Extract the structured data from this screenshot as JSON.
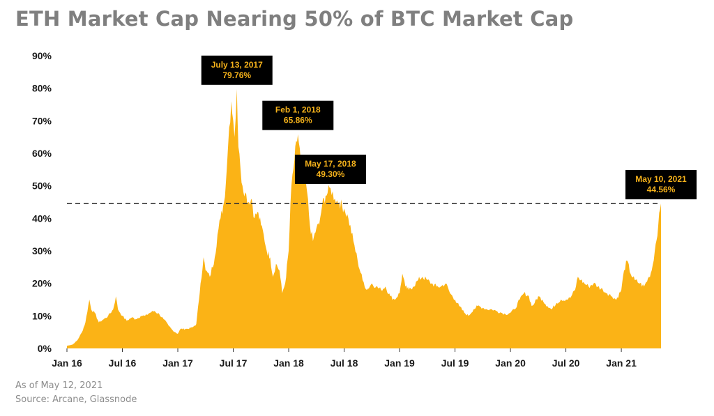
{
  "title": "ETH Market Cap Nearing 50% of BTC Market Cap",
  "footnote": {
    "line1": "As of May 12, 2021",
    "line2": "Source: Arcane, Glassnode"
  },
  "colors": {
    "area": "#fbb316",
    "title": "#7f7f7f",
    "annotation_bg": "#000000",
    "annotation_text": "#f5b21b",
    "reference_line": "#333333"
  },
  "chart_data": {
    "type": "area",
    "xlabel": "",
    "ylabel": "",
    "ylim": [
      0,
      90
    ],
    "x_start": "2016-01",
    "x_end": "2021-05",
    "y_ticks": [
      "0%",
      "10%",
      "20%",
      "30%",
      "40%",
      "50%",
      "60%",
      "70%",
      "80%",
      "90%"
    ],
    "x_ticks": [
      {
        "date": "2016-01",
        "label": "Jan 16"
      },
      {
        "date": "2016-07",
        "label": "Jul 16"
      },
      {
        "date": "2017-01",
        "label": "Jan 17"
      },
      {
        "date": "2017-07",
        "label": "Jul 17"
      },
      {
        "date": "2018-01",
        "label": "Jan 18"
      },
      {
        "date": "2018-07",
        "label": "Jul 18"
      },
      {
        "date": "2019-01",
        "label": "Jan 19"
      },
      {
        "date": "2019-07",
        "label": "Jul 19"
      },
      {
        "date": "2020-01",
        "label": "Jan 20"
      },
      {
        "date": "2020-07",
        "label": "Jul 20"
      },
      {
        "date": "2021-01",
        "label": "Jan 21"
      }
    ],
    "reference_line": 44.56,
    "series": [
      {
        "points": [
          [
            "2016-01-01",
            0.8
          ],
          [
            "2016-01-20",
            1.2
          ],
          [
            "2016-02-05",
            2.5
          ],
          [
            "2016-02-20",
            5
          ],
          [
            "2016-03-01",
            8
          ],
          [
            "2016-03-14",
            15
          ],
          [
            "2016-03-20",
            12
          ],
          [
            "2016-04-01",
            11
          ],
          [
            "2016-04-15",
            8
          ],
          [
            "2016-05-01",
            9
          ],
          [
            "2016-05-15",
            10
          ],
          [
            "2016-06-01",
            12
          ],
          [
            "2016-06-10",
            16
          ],
          [
            "2016-06-17",
            12
          ],
          [
            "2016-07-01",
            10
          ],
          [
            "2016-07-15",
            8.5
          ],
          [
            "2016-08-01",
            9.5
          ],
          [
            "2016-08-15",
            9
          ],
          [
            "2016-09-01",
            10
          ],
          [
            "2016-09-15",
            10
          ],
          [
            "2016-10-01",
            11
          ],
          [
            "2016-10-15",
            11.5
          ],
          [
            "2016-11-01",
            10.5
          ],
          [
            "2016-11-15",
            9
          ],
          [
            "2016-12-01",
            7
          ],
          [
            "2016-12-15",
            5.5
          ],
          [
            "2017-01-01",
            4.5
          ],
          [
            "2017-01-10",
            6
          ],
          [
            "2017-02-01",
            6
          ],
          [
            "2017-02-20",
            6.5
          ],
          [
            "2017-03-01",
            7.5
          ],
          [
            "2017-03-10",
            15
          ],
          [
            "2017-03-15",
            20
          ],
          [
            "2017-03-25",
            28
          ],
          [
            "2017-04-01",
            24
          ],
          [
            "2017-04-15",
            22
          ],
          [
            "2017-05-01",
            28
          ],
          [
            "2017-05-10",
            35
          ],
          [
            "2017-05-20",
            40
          ],
          [
            "2017-06-01",
            45
          ],
          [
            "2017-06-10",
            55
          ],
          [
            "2017-06-18",
            68
          ],
          [
            "2017-06-25",
            76
          ],
          [
            "2017-07-01",
            70
          ],
          [
            "2017-07-05",
            65
          ],
          [
            "2017-07-13",
            79.76
          ],
          [
            "2017-07-18",
            62
          ],
          [
            "2017-07-25",
            55
          ],
          [
            "2017-08-01",
            50
          ],
          [
            "2017-08-10",
            48
          ],
          [
            "2017-08-20",
            45
          ],
          [
            "2017-09-01",
            46
          ],
          [
            "2017-09-10",
            40
          ],
          [
            "2017-09-20",
            42
          ],
          [
            "2017-10-01",
            38
          ],
          [
            "2017-10-10",
            35
          ],
          [
            "2017-10-20",
            30
          ],
          [
            "2017-11-01",
            28
          ],
          [
            "2017-11-10",
            22
          ],
          [
            "2017-11-20",
            26
          ],
          [
            "2017-12-01",
            24
          ],
          [
            "2017-12-10",
            17
          ],
          [
            "2017-12-20",
            20
          ],
          [
            "2018-01-01",
            30
          ],
          [
            "2018-01-10",
            50
          ],
          [
            "2018-01-20",
            58
          ],
          [
            "2018-02-01",
            65.86
          ],
          [
            "2018-02-10",
            58
          ],
          [
            "2018-02-20",
            54
          ],
          [
            "2018-03-01",
            48
          ],
          [
            "2018-03-10",
            38
          ],
          [
            "2018-03-20",
            33
          ],
          [
            "2018-04-01",
            37
          ],
          [
            "2018-04-10",
            38
          ],
          [
            "2018-04-20",
            44
          ],
          [
            "2018-05-01",
            47
          ],
          [
            "2018-05-17",
            49.3
          ],
          [
            "2018-06-01",
            46
          ],
          [
            "2018-06-15",
            45
          ],
          [
            "2018-07-01",
            43
          ],
          [
            "2018-07-15",
            40
          ],
          [
            "2018-08-01",
            33
          ],
          [
            "2018-08-15",
            27
          ],
          [
            "2018-09-01",
            21
          ],
          [
            "2018-09-15",
            18
          ],
          [
            "2018-10-01",
            20
          ],
          [
            "2018-10-15",
            19
          ],
          [
            "2018-11-01",
            18
          ],
          [
            "2018-11-15",
            19
          ],
          [
            "2018-12-01",
            16
          ],
          [
            "2018-12-15",
            15
          ],
          [
            "2019-01-01",
            17
          ],
          [
            "2019-01-10",
            23
          ],
          [
            "2019-01-20",
            19
          ],
          [
            "2019-02-01",
            18
          ],
          [
            "2019-02-15",
            19
          ],
          [
            "2019-03-01",
            21
          ],
          [
            "2019-03-15",
            22
          ],
          [
            "2019-04-01",
            21
          ],
          [
            "2019-04-15",
            20
          ],
          [
            "2019-05-01",
            19
          ],
          [
            "2019-05-15",
            19
          ],
          [
            "2019-06-01",
            20
          ],
          [
            "2019-06-15",
            17
          ],
          [
            "2019-07-01",
            15
          ],
          [
            "2019-07-15",
            13
          ],
          [
            "2019-08-01",
            11
          ],
          [
            "2019-08-15",
            10
          ],
          [
            "2019-09-01",
            12
          ],
          [
            "2019-09-15",
            13
          ],
          [
            "2019-10-01",
            12.5
          ],
          [
            "2019-10-15",
            12
          ],
          [
            "2019-11-01",
            12
          ],
          [
            "2019-11-15",
            11.5
          ],
          [
            "2019-12-01",
            11
          ],
          [
            "2019-12-15",
            10.5
          ],
          [
            "2020-01-01",
            11
          ],
          [
            "2020-01-15",
            12
          ],
          [
            "2020-02-01",
            15
          ],
          [
            "2020-02-15",
            17
          ],
          [
            "2020-03-01",
            16
          ],
          [
            "2020-03-10",
            13
          ],
          [
            "2020-03-20",
            14
          ],
          [
            "2020-04-01",
            16
          ],
          [
            "2020-04-15",
            15
          ],
          [
            "2020-05-01",
            13
          ],
          [
            "2020-05-15",
            12
          ],
          [
            "2020-06-01",
            14
          ],
          [
            "2020-06-15",
            15
          ],
          [
            "2020-07-01",
            15
          ],
          [
            "2020-07-15",
            15.5
          ],
          [
            "2020-08-01",
            18
          ],
          [
            "2020-08-10",
            22
          ],
          [
            "2020-08-20",
            21
          ],
          [
            "2020-09-01",
            20
          ],
          [
            "2020-09-15",
            19
          ],
          [
            "2020-10-01",
            20
          ],
          [
            "2020-10-15",
            19
          ],
          [
            "2020-11-01",
            18
          ],
          [
            "2020-11-15",
            17
          ],
          [
            "2020-12-01",
            16
          ],
          [
            "2020-12-15",
            15
          ],
          [
            "2021-01-01",
            18
          ],
          [
            "2021-01-10",
            24
          ],
          [
            "2021-01-20",
            27
          ],
          [
            "2021-02-01",
            23
          ],
          [
            "2021-02-15",
            21
          ],
          [
            "2021-03-01",
            20
          ],
          [
            "2021-03-15",
            19
          ],
          [
            "2021-04-01",
            22
          ],
          [
            "2021-04-10",
            24
          ],
          [
            "2021-04-20",
            30
          ],
          [
            "2021-05-01",
            38
          ],
          [
            "2021-05-10",
            44.56
          ]
        ]
      }
    ],
    "annotations": [
      {
        "date_label": "July 13, 2017",
        "value_label": "79.76%",
        "x": "2017-07-13",
        "y": 79.76
      },
      {
        "date_label": "Feb 1, 2018",
        "value_label": "65.86%",
        "x": "2018-02-01",
        "y": 65.86
      },
      {
        "date_label": "May 17, 2018",
        "value_label": "49.30%",
        "x": "2018-05-17",
        "y": 49.3
      },
      {
        "date_label": "May 10, 2021",
        "value_label": "44.56%",
        "x": "2021-05-10",
        "y": 44.56
      }
    ]
  }
}
